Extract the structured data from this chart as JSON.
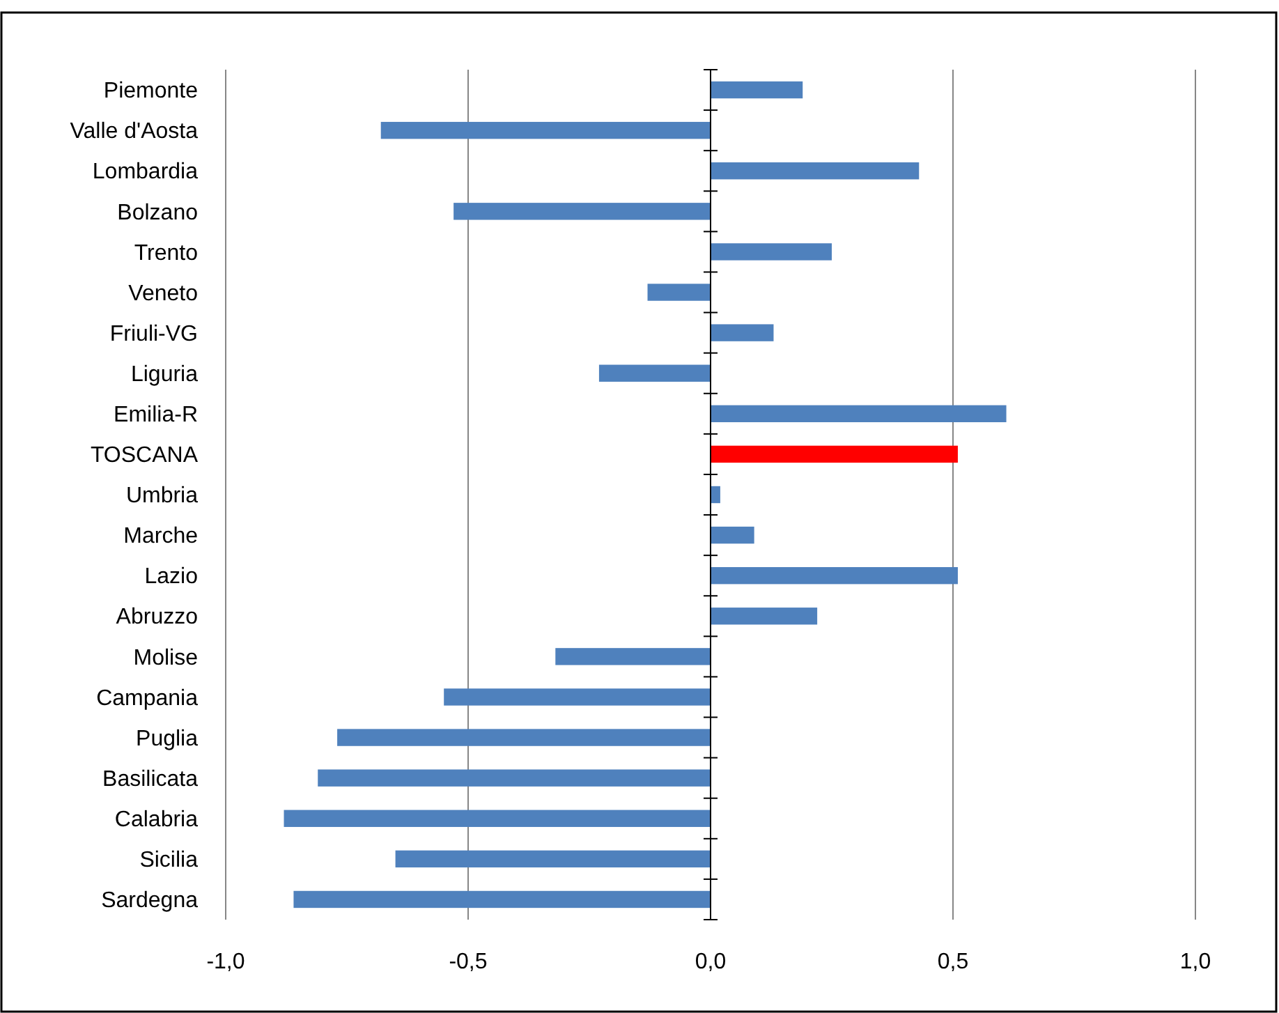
{
  "chart_data": {
    "type": "bar",
    "orientation": "horizontal",
    "categories": [
      "Piemonte",
      "Valle d'Aosta",
      "Lombardia",
      "Bolzano",
      "Trento",
      "Veneto",
      "Friuli-VG",
      "Liguria",
      "Emilia-R",
      "TOSCANA",
      "Umbria",
      "Marche",
      "Lazio",
      "Abruzzo",
      "Molise",
      "Campania",
      "Puglia",
      "Basilicata",
      "Calabria",
      "Sicilia",
      "Sardegna"
    ],
    "values": [
      0.19,
      -0.68,
      0.43,
      -0.53,
      0.25,
      -0.13,
      0.13,
      -0.23,
      0.61,
      0.51,
      0.02,
      0.09,
      0.51,
      0.22,
      -0.32,
      -0.55,
      -0.77,
      -0.81,
      -0.88,
      -0.65,
      -0.86
    ],
    "colors": [
      "#4f81bd",
      "#4f81bd",
      "#4f81bd",
      "#4f81bd",
      "#4f81bd",
      "#4f81bd",
      "#4f81bd",
      "#4f81bd",
      "#4f81bd",
      "#ff0000",
      "#4f81bd",
      "#4f81bd",
      "#4f81bd",
      "#4f81bd",
      "#4f81bd",
      "#4f81bd",
      "#4f81bd",
      "#4f81bd",
      "#4f81bd",
      "#4f81bd",
      "#4f81bd"
    ],
    "xlim": [
      -1,
      1
    ],
    "xticks": [
      {
        "value": -1,
        "label": "-1,0"
      },
      {
        "value": -0.5,
        "label": "-0,5"
      },
      {
        "value": 0,
        "label": "0,0"
      },
      {
        "value": 0.5,
        "label": "0,5"
      },
      {
        "value": 1,
        "label": "1,0"
      }
    ],
    "grid": "x"
  }
}
